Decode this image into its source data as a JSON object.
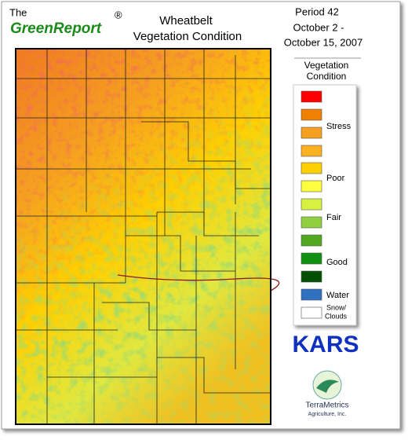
{
  "header": {
    "the": "The",
    "brand": "GreenReport",
    "registered": "®",
    "title_line1": "Wheatbelt",
    "title_line2": "Vegetation Condition"
  },
  "period": {
    "line1": "Period 42",
    "line2": "October 2 -",
    "line3": "October 15, 2007"
  },
  "legend": {
    "title_line1": "Vegetation",
    "title_line2": "Condition",
    "stress": "Stress",
    "poor": "Poor",
    "fair": "Fair",
    "good": "Good",
    "water": "Water",
    "snow_line1": "Snow/",
    "snow_line2": "Clouds"
  },
  "logos": {
    "kars": "KARS",
    "terrametrics": "TerraMetrics",
    "terrametrics_sub": "Agriculture, Inc."
  }
}
